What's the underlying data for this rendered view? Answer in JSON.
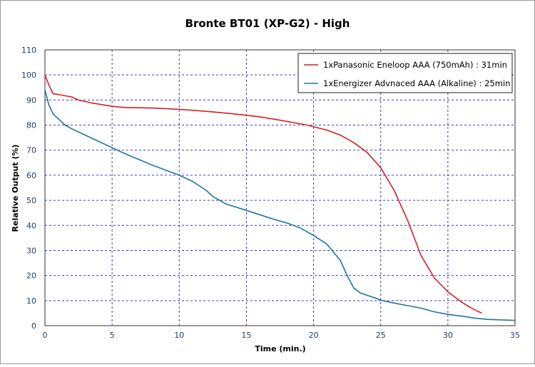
{
  "chart_data": {
    "type": "line",
    "title": "Bronte  BT01 (XP-G2) - High",
    "xlabel": "Time (min.)",
    "ylabel": "Relative Output (%)",
    "xlim": [
      0,
      35
    ],
    "ylim": [
      0,
      110
    ],
    "x_ticks": [
      "0",
      "5",
      "10",
      "15",
      "20",
      "25",
      "30",
      "35"
    ],
    "y_ticks": [
      "0",
      "10",
      "20",
      "30",
      "40",
      "50",
      "60",
      "70",
      "80",
      "90",
      "100",
      "110"
    ],
    "grid": true,
    "legend_position": "top-right",
    "series": [
      {
        "name": "1xPanasonic Eneloop AAA (750mAh) : 31min",
        "color": "#d42020",
        "points": [
          [
            0,
            100
          ],
          [
            0.3,
            96
          ],
          [
            0.6,
            92.5
          ],
          [
            1,
            92.2
          ],
          [
            2,
            91.2
          ],
          [
            2.5,
            90
          ],
          [
            3.5,
            88.8
          ],
          [
            5,
            87.5
          ],
          [
            6,
            87
          ],
          [
            8,
            86.8
          ],
          [
            10,
            86.3
          ],
          [
            12,
            85.5
          ],
          [
            14,
            84.5
          ],
          [
            16,
            83.3
          ],
          [
            18,
            81.5
          ],
          [
            19.5,
            80
          ],
          [
            21,
            78
          ],
          [
            22,
            76
          ],
          [
            23,
            73
          ],
          [
            24,
            69
          ],
          [
            25,
            63
          ],
          [
            26,
            54
          ],
          [
            27,
            42
          ],
          [
            28,
            28
          ],
          [
            29,
            19
          ],
          [
            30,
            13.5
          ],
          [
            31,
            9.5
          ],
          [
            31.5,
            7.8
          ],
          [
            32,
            6.3
          ],
          [
            32.5,
            5.1
          ]
        ]
      },
      {
        "name": "1xEnergizer Advnaced AAA (Alkaline) : 25min",
        "color": "#1f74a8",
        "points": [
          [
            0,
            94
          ],
          [
            0.3,
            88
          ],
          [
            0.6,
            84.5
          ],
          [
            1,
            82.5
          ],
          [
            1.5,
            80
          ],
          [
            2,
            78.5
          ],
          [
            3,
            76
          ],
          [
            4,
            73.5
          ],
          [
            5,
            71
          ],
          [
            6,
            68.5
          ],
          [
            8,
            64
          ],
          [
            10,
            60
          ],
          [
            11,
            57.5
          ],
          [
            12,
            54
          ],
          [
            12.5,
            51.5
          ],
          [
            13.5,
            48.5
          ],
          [
            15,
            46
          ],
          [
            17,
            42.5
          ],
          [
            18,
            41
          ],
          [
            19,
            39
          ],
          [
            20,
            36
          ],
          [
            21,
            32.5
          ],
          [
            22,
            26
          ],
          [
            22.5,
            20
          ],
          [
            23,
            15
          ],
          [
            23.5,
            13
          ],
          [
            24.5,
            11.2
          ],
          [
            25,
            10.2
          ],
          [
            26,
            9
          ],
          [
            27,
            8
          ],
          [
            28,
            7
          ],
          [
            29,
            5.5
          ],
          [
            30,
            4.5
          ],
          [
            31,
            3.8
          ],
          [
            32,
            3
          ],
          [
            33,
            2.5
          ],
          [
            34,
            2.3
          ],
          [
            35,
            2.1
          ]
        ]
      }
    ]
  }
}
